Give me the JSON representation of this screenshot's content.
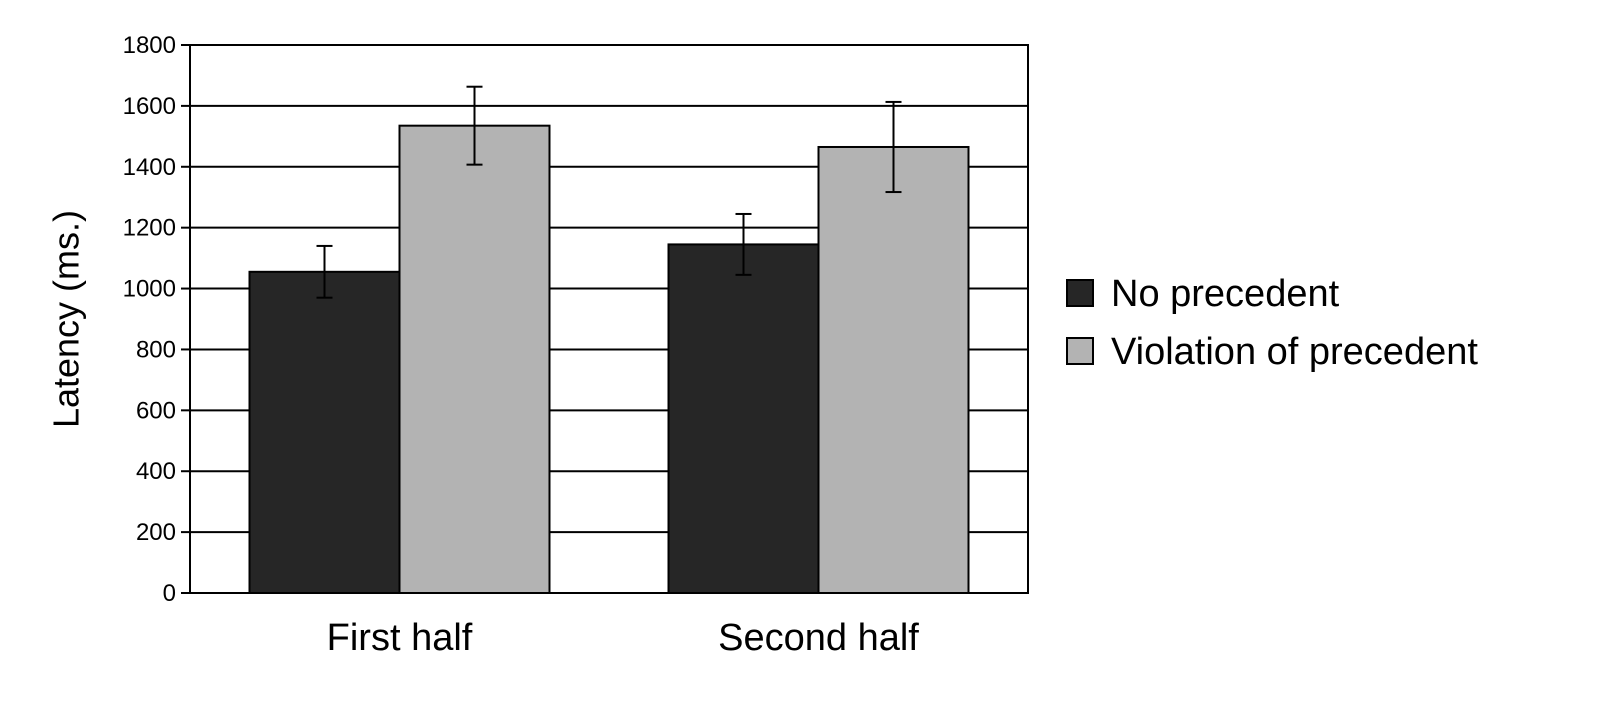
{
  "chart_data": {
    "type": "bar",
    "categories": [
      "First half",
      "Second half"
    ],
    "series": [
      {
        "name": "No precedent",
        "color": "#262626",
        "values": [
          1055,
          1145
        ],
        "error": [
          85,
          100
        ]
      },
      {
        "name": "Violation of precedent",
        "color": "#b3b3b3",
        "values": [
          1535,
          1465
        ],
        "error": [
          128,
          148
        ]
      }
    ],
    "ylabel": "Latency (ms.)",
    "ylim": [
      0,
      1800
    ],
    "yticks": [
      0,
      200,
      400,
      600,
      800,
      1000,
      1200,
      1400,
      1600,
      1800
    ],
    "grid": true,
    "legend": "right"
  }
}
